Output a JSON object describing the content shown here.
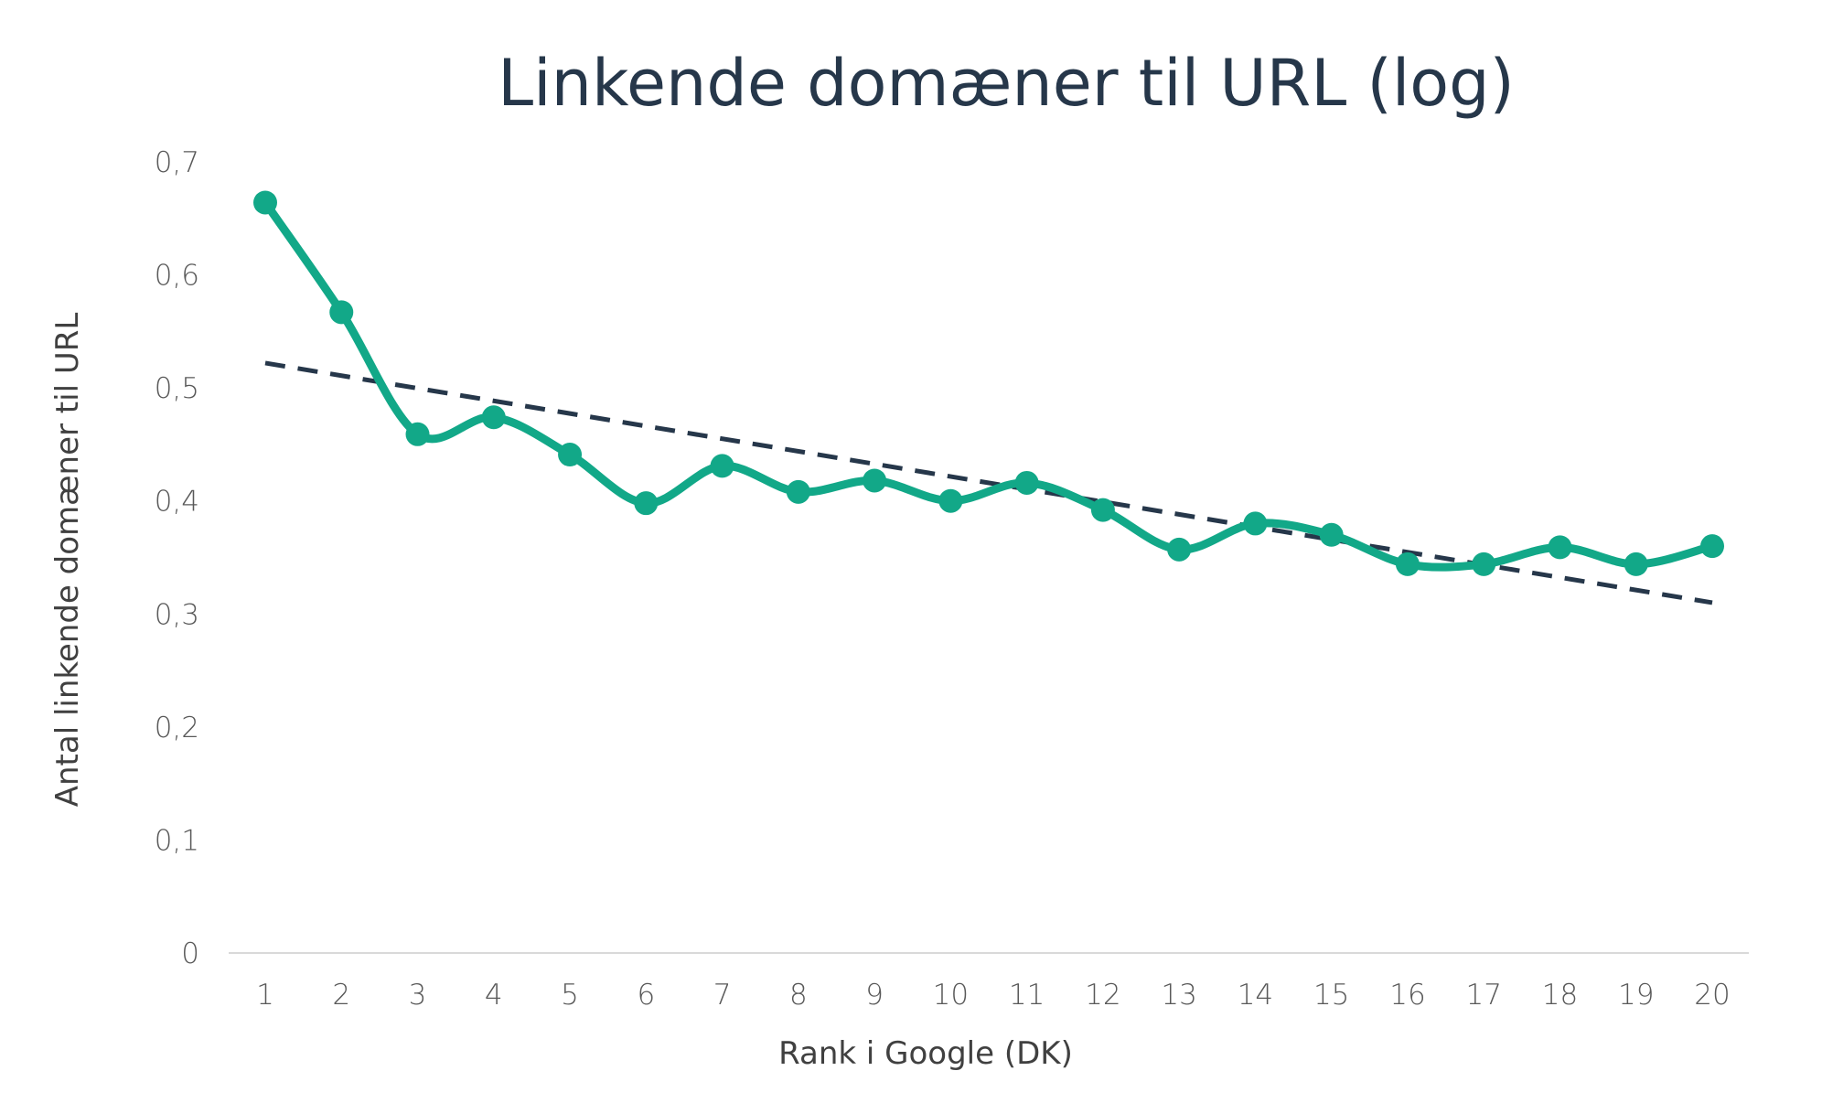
{
  "chart_data": {
    "type": "line",
    "title": "Linkende domæner til URL (log)",
    "xlabel": "Rank i Google (DK)",
    "ylabel": "Antal linkende domæner til URL",
    "categories": [
      "1",
      "2",
      "3",
      "4",
      "5",
      "6",
      "7",
      "8",
      "9",
      "10",
      "11",
      "12",
      "13",
      "14",
      "15",
      "16",
      "17",
      "18",
      "19",
      "20"
    ],
    "y_ticks": [
      "0",
      "0,1",
      "0,2",
      "0,3",
      "0,4",
      "0,5",
      "0,6",
      "0,7"
    ],
    "ylim": [
      0,
      0.7
    ],
    "grid": false,
    "legend": "none",
    "series": [
      {
        "values": [
          0.664,
          0.567,
          0.459,
          0.474,
          0.441,
          0.398,
          0.431,
          0.408,
          0.418,
          0.4,
          0.416,
          0.392,
          0.357,
          0.38,
          0.37,
          0.344,
          0.344,
          0.359,
          0.344,
          0.36
        ],
        "color": "#12a888",
        "marker": "circle",
        "smoothed": true
      }
    ],
    "trendline": {
      "type": "linear",
      "start": 0.522,
      "end": 0.31,
      "color": "#26374a",
      "style": "dashed"
    }
  }
}
